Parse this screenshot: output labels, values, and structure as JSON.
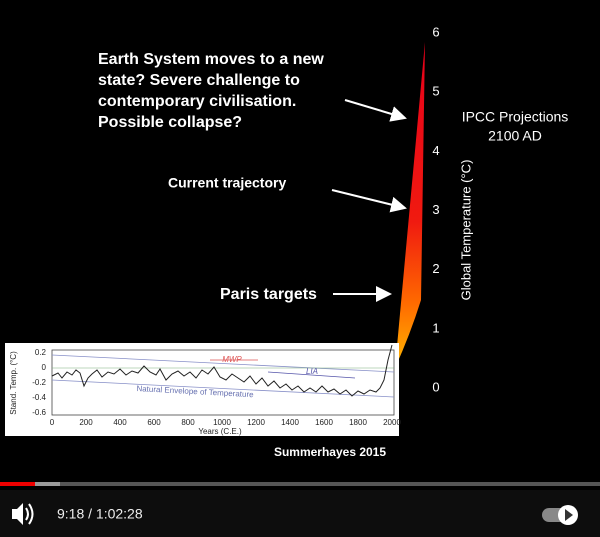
{
  "slide": {
    "headline": [
      "Earth System moves to a new",
      "state? Severe challenge to",
      "contemporary civilisation.",
      "Possible collapse?"
    ],
    "current_trajectory": "Current trajectory",
    "paris_targets": "Paris targets",
    "axis_ticks": [
      "6",
      "5",
      "4",
      "3",
      "2",
      "1",
      "0"
    ],
    "axis_label": "Global Temperature (°C)",
    "projections": [
      "IPCC Projections",
      "2100 AD"
    ],
    "credit": "Summerhayes 2015",
    "inset": {
      "y_label": "Stand. Temp. (°C)",
      "y_ticks": [
        "0.2",
        "0",
        "-0.2",
        "-0.4",
        "-0.6"
      ],
      "x_ticks": [
        "0",
        "200",
        "400",
        "600",
        "800",
        "1000",
        "1200",
        "1400",
        "1600",
        "1800",
        "2000"
      ],
      "x_label": "Years (C.E.)",
      "mwp": "MWP",
      "lia": "LIA",
      "envelope": "Natural Envelope of Temperature"
    }
  },
  "player": {
    "time": "9:18 / 1:02:28"
  }
}
